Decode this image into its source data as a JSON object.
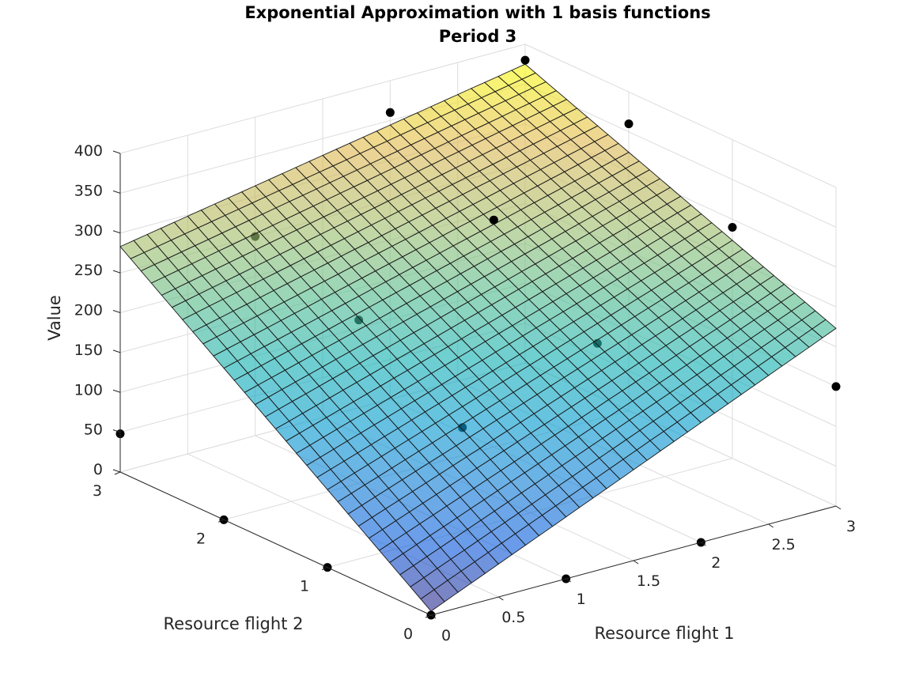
{
  "chart_data": {
    "type": "surface3d",
    "title": "Exponential Approximation with 1 basis functions",
    "subtitle": "Period 3",
    "xlabel": "Resource flight 1",
    "ylabel": "Resource flight 2",
    "zlabel": "Value",
    "xlim": [
      0,
      3
    ],
    "ylim": [
      0,
      3
    ],
    "zlim": [
      0,
      400
    ],
    "xticks": [
      "0",
      "0.5",
      "1",
      "1.5",
      "2",
      "2.5",
      "3"
    ],
    "yticks": [
      "0",
      "1",
      "2",
      "3"
    ],
    "zticks": [
      "0",
      "50",
      "100",
      "150",
      "200",
      "250",
      "300",
      "350",
      "400"
    ],
    "grid": true,
    "colormap": "parula",
    "surface": {
      "x_range": [
        0,
        3
      ],
      "y_range": [
        0,
        3
      ],
      "resolution": 30,
      "z_corners": {
        "x0_y0": 5,
        "x3_y0": 223,
        "x0_y3": 283,
        "x3_y3": 375
      }
    },
    "points": [
      {
        "x": 0,
        "y": 0,
        "z": 0
      },
      {
        "x": 1,
        "y": 0,
        "z": 0
      },
      {
        "x": 2,
        "y": 0,
        "z": 0
      },
      {
        "x": 3,
        "y": 0,
        "z": 150
      },
      {
        "x": 0,
        "y": 1,
        "z": 0
      },
      {
        "x": 1,
        "y": 1,
        "z": 130
      },
      {
        "x": 2,
        "y": 1,
        "z": 190
      },
      {
        "x": 3,
        "y": 1,
        "z": 290
      },
      {
        "x": 0,
        "y": 2,
        "z": 0
      },
      {
        "x": 1,
        "y": 2,
        "z": 205
      },
      {
        "x": 2,
        "y": 2,
        "z": 285
      },
      {
        "x": 3,
        "y": 2,
        "z": 360
      },
      {
        "x": 0,
        "y": 3,
        "z": 48
      },
      {
        "x": 1,
        "y": 3,
        "z": 250
      },
      {
        "x": 2,
        "y": 3,
        "z": 360
      },
      {
        "x": 3,
        "y": 3,
        "z": 380
      }
    ]
  }
}
